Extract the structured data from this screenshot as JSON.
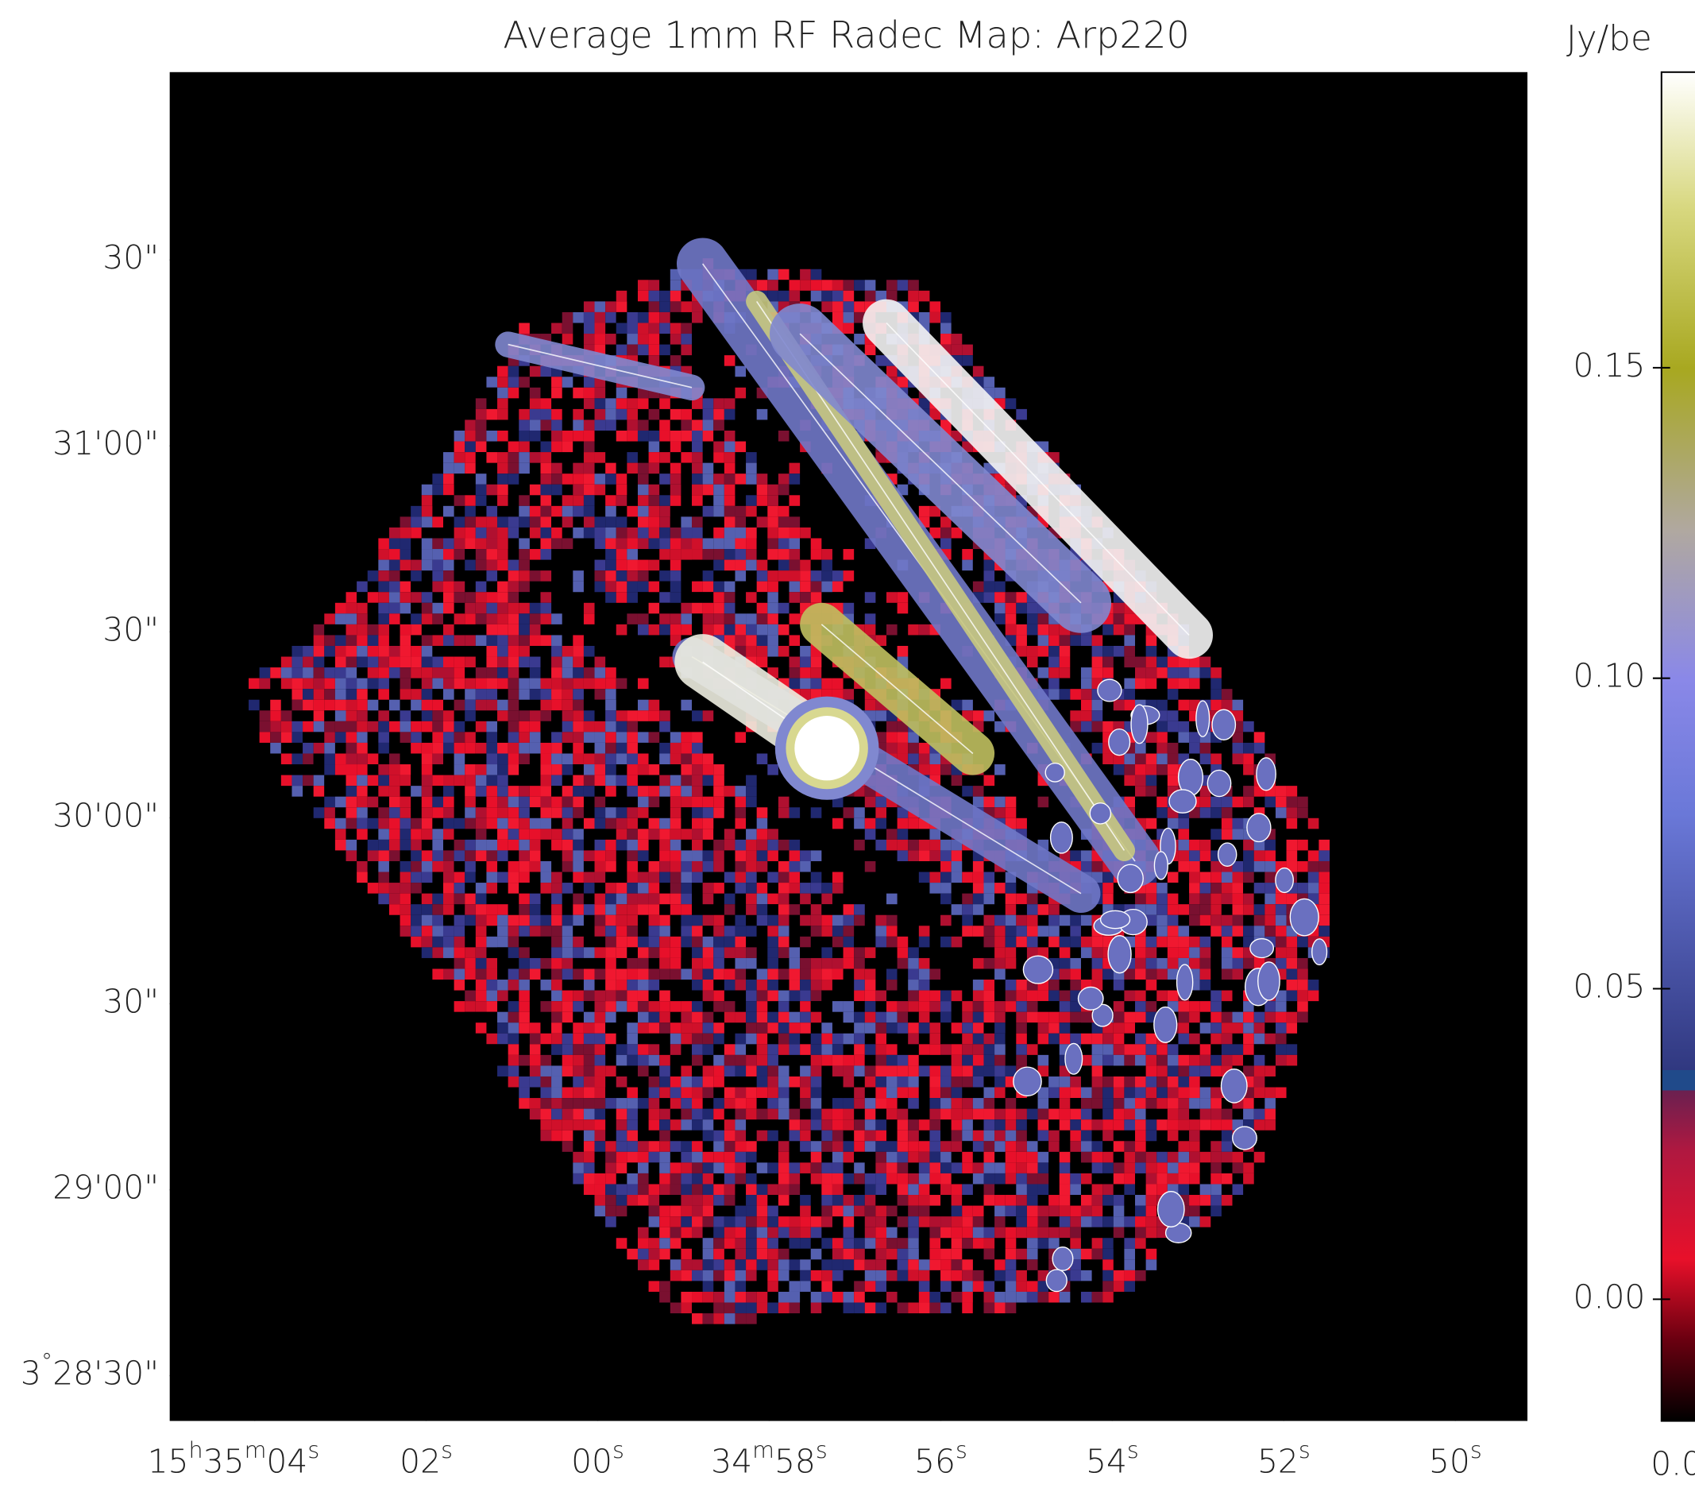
{
  "chart_data": {
    "type": "image",
    "title": "Average 1mm RF Radec Map: Arp220",
    "xlim": [
      64.99,
      49.16
    ],
    "xticks": [
      {
        "value": 64,
        "label": "15h35m04s"
      },
      {
        "value": 62,
        "label": "02s"
      },
      {
        "value": 60,
        "label": "00s"
      },
      {
        "value": 58,
        "label": "34m58s"
      },
      {
        "value": 56,
        "label": "56s"
      },
      {
        "value": 54,
        "label": "54s"
      },
      {
        "value": 52,
        "label": "52s"
      },
      {
        "value": 50,
        "label": "50s"
      }
    ],
    "ylim": [
      1702.7,
      1920.3
    ],
    "yticks": [
      {
        "value": 1710,
        "label": "3°28'30\""
      },
      {
        "value": 1740,
        "label": "29'00\""
      },
      {
        "value": 1770,
        "label": "30\""
      },
      {
        "value": 1800,
        "label": "30'00\""
      },
      {
        "value": 1830,
        "label": "30\""
      },
      {
        "value": 1860,
        "label": "31'00\""
      },
      {
        "value": 1890,
        "label": "30\""
      }
    ],
    "colorbar": {
      "label": "Jy/be",
      "lim": [
        -0.0196,
        0.1976
      ],
      "ticks": [
        {
          "value": 0,
          "label": "0.00"
        },
        {
          "value": 0.05,
          "label": "0.05"
        },
        {
          "value": 0.1,
          "label": "0.10"
        },
        {
          "value": 0.15,
          "label": "0.15"
        }
      ],
      "bottom_label": "0.0"
    }
  }
}
